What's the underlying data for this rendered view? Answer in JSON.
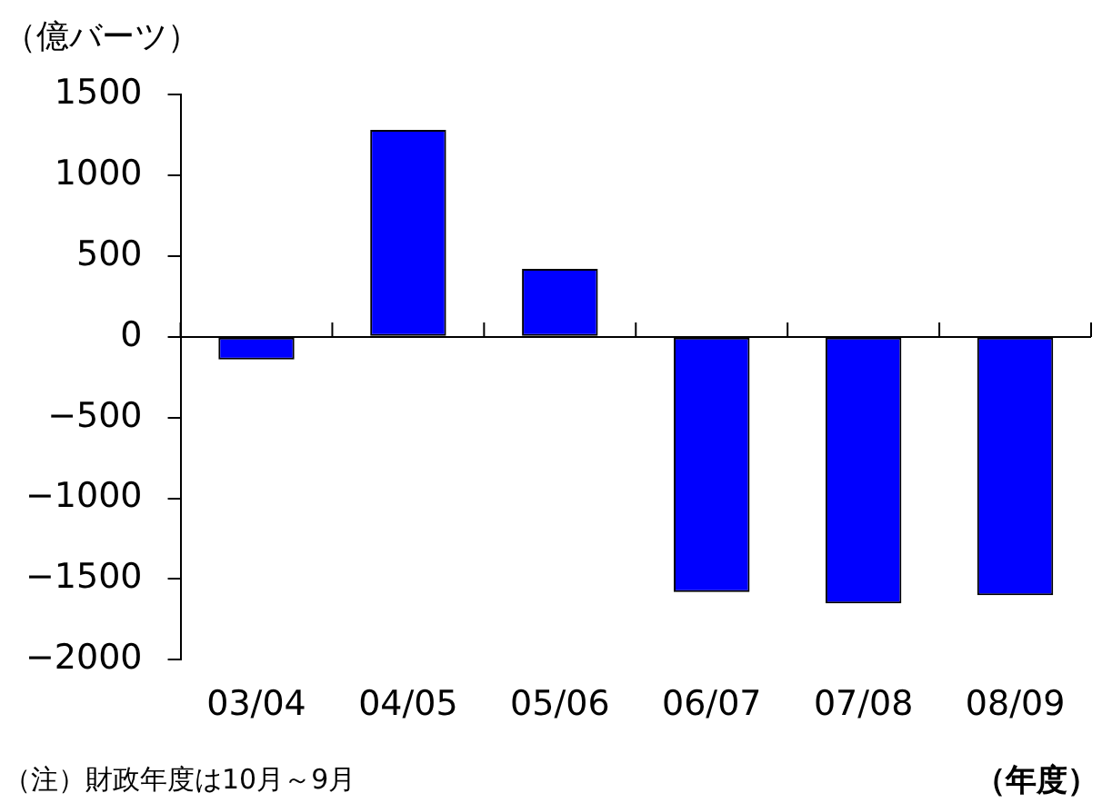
{
  "chart_data": {
    "type": "bar",
    "ylabel": "（億バーツ）",
    "xlabel": "（年度）",
    "annotations": [
      "（注）財政年度は10月～9月"
    ],
    "categories": [
      "03/04",
      "04/05",
      "05/06",
      "06/07",
      "07/08",
      "08/09"
    ],
    "series": [
      {
        "color": "#0000ff",
        "values": [
          -140,
          1280,
          420,
          -1580,
          -1650,
          -1600
        ]
      }
    ],
    "ylim": [
      -2000,
      1500
    ],
    "yticks": [
      -2000,
      -1500,
      -1000,
      -500,
      0,
      500,
      1000,
      1500
    ]
  }
}
